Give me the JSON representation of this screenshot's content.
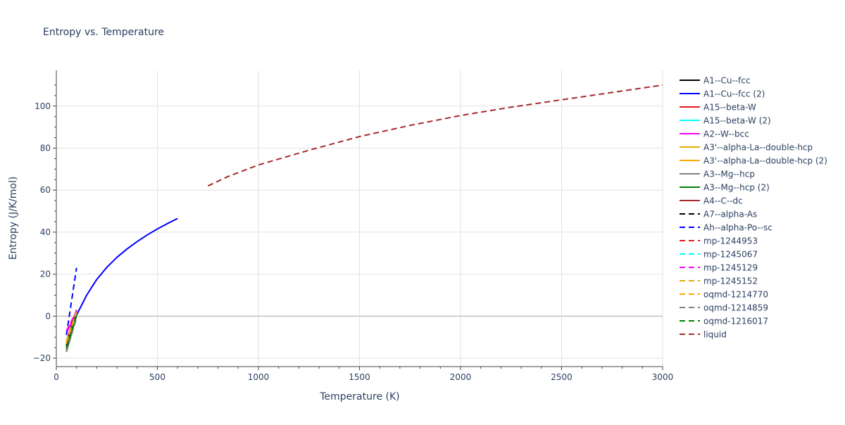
{
  "chart_data": {
    "type": "line",
    "title": "Entropy vs. Temperature",
    "xlabel": "Temperature (K)",
    "ylabel": "Entropy (J/K/mol)",
    "xlim": [
      0,
      3000
    ],
    "ylim": [
      -24,
      117
    ],
    "x_ticks": [
      0,
      500,
      1000,
      1500,
      2000,
      2500,
      3000
    ],
    "y_ticks": [
      -20,
      0,
      20,
      40,
      60,
      80,
      100
    ],
    "x_tick_labels": [
      "0",
      "500",
      "1000",
      "1500",
      "2000",
      "2500",
      "3000"
    ],
    "y_tick_labels": [
      "−20",
      "0",
      "20",
      "40",
      "60",
      "80",
      "100"
    ],
    "grid": true,
    "legend_position": "right",
    "series": [
      {
        "name": "A1--Cu--fcc",
        "color": "#000000",
        "dash": "solid",
        "x": [
          50,
          100
        ],
        "y": [
          -15,
          1
        ]
      },
      {
        "name": "A1--Cu--fcc (2)",
        "color": "#0000ff",
        "dash": "solid",
        "x": [
          50,
          100,
          150,
          200,
          250,
          300,
          350,
          400,
          450,
          500,
          550,
          600
        ],
        "y": [
          -15,
          0.5,
          10,
          17.5,
          23.3,
          28,
          32,
          35.5,
          38.7,
          41.5,
          44.1,
          46.5
        ]
      },
      {
        "name": "A15--beta-W",
        "color": "#e41a1c",
        "dash": "solid",
        "x": [
          50,
          100
        ],
        "y": [
          -13,
          3
        ]
      },
      {
        "name": "A15--beta-W (2)",
        "color": "#00ffff",
        "dash": "solid",
        "x": [
          50,
          100
        ],
        "y": [
          -14,
          2
        ]
      },
      {
        "name": "A2--W--bcc",
        "color": "#ff00ff",
        "dash": "solid",
        "x": [
          50,
          100
        ],
        "y": [
          -8,
          2
        ]
      },
      {
        "name": "A3'--alpha-La--double-hcp",
        "color": "#e6ab02",
        "dash": "solid",
        "x": [
          50,
          100
        ],
        "y": [
          -14,
          2
        ]
      },
      {
        "name": "A3'--alpha-La--double-hcp (2)",
        "color": "#ffa500",
        "dash": "solid",
        "x": [
          50,
          100
        ],
        "y": [
          -13,
          2.5
        ]
      },
      {
        "name": "A3--Mg--hcp",
        "color": "#808080",
        "dash": "solid",
        "x": [
          50,
          100
        ],
        "y": [
          -17,
          0
        ]
      },
      {
        "name": "A3--Mg--hcp (2)",
        "color": "#008000",
        "dash": "solid",
        "x": [
          50,
          100
        ],
        "y": [
          -16,
          1
        ]
      },
      {
        "name": "A4--C--dc",
        "color": "#a52a2a",
        "dash": "solid",
        "x": [
          50,
          100
        ],
        "y": [
          -12,
          3
        ]
      },
      {
        "name": "A7--alpha-As",
        "color": "#000000",
        "dash": "dash",
        "x": [
          50,
          100
        ],
        "y": [
          -14,
          1
        ]
      },
      {
        "name": "Ah--alpha-Po--sc",
        "color": "#0000ff",
        "dash": "dash",
        "x": [
          50,
          100
        ],
        "y": [
          -9,
          23
        ]
      },
      {
        "name": "mp-1244953",
        "color": "#e41a1c",
        "dash": "dash",
        "x": [
          50,
          100
        ],
        "y": [
          -12,
          2
        ]
      },
      {
        "name": "mp-1245067",
        "color": "#00ffff",
        "dash": "dash",
        "x": [
          50,
          100
        ],
        "y": [
          -13,
          1.5
        ]
      },
      {
        "name": "mp-1245129",
        "color": "#ff00ff",
        "dash": "dash",
        "x": [
          50,
          100
        ],
        "y": [
          -7,
          2.5
        ]
      },
      {
        "name": "mp-1245152",
        "color": "#e6ab02",
        "dash": "dash",
        "x": [
          50,
          100
        ],
        "y": [
          -12,
          2
        ]
      },
      {
        "name": "oqmd-1214770",
        "color": "#ffa500",
        "dash": "dash",
        "x": [
          50,
          100
        ],
        "y": [
          -13,
          2
        ]
      },
      {
        "name": "oqmd-1214859",
        "color": "#808080",
        "dash": "dash",
        "x": [
          50,
          100
        ],
        "y": [
          -17,
          -1
        ]
      },
      {
        "name": "oqmd-1216017",
        "color": "#008000",
        "dash": "dash",
        "x": [
          50,
          100
        ],
        "y": [
          -15,
          0.5
        ]
      },
      {
        "name": "liquid",
        "color": "#a52a2a",
        "dash": "dash",
        "x": [
          750,
          850,
          1000,
          1250,
          1500,
          1750,
          2000,
          2250,
          2500,
          2750,
          3000
        ],
        "y": [
          62,
          66.5,
          72,
          79,
          85.5,
          90.8,
          95.5,
          99.5,
          103,
          106.5,
          110
        ]
      }
    ]
  }
}
